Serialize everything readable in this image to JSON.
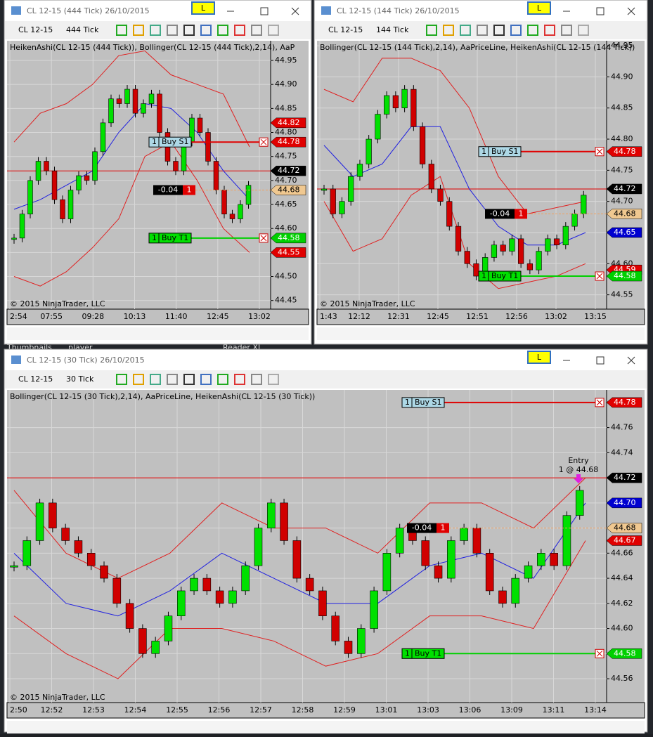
{
  "desktop": {
    "labels": [
      "Thumbnails",
      "player",
      "Reader XI"
    ]
  },
  "windows": [
    {
      "title": "CL 12-15 (444 Tick)  26/10/2015",
      "badge": "L",
      "instrument": "CL 12-15",
      "interval": "444 Tick",
      "indicators": "HeikenAshi(CL 12-15 (444 Tick)), Bollinger(CL 12-15 (444 Tick),2,14), AaP",
      "copyright": "© 2015 NinjaTrader, LLC",
      "ylim": [
        44.432,
        44.991
      ],
      "yticks": [
        44.45,
        {
          "value": 44.5,
          "label": "44.50"
        },
        44.55,
        {
          "value": 44.6,
          "label": "44.60"
        },
        44.65,
        {
          "value": 44.7,
          "label": "44.70"
        },
        44.75,
        {
          "value": 44.8,
          "label": "44.80"
        },
        44.85,
        {
          "value": 44.9,
          "label": "44.90"
        },
        44.95
      ],
      "times": [
        "2:54",
        "07:55",
        "09:28",
        "10:13",
        "11:40",
        "12:45",
        "13:02"
      ],
      "closes": [
        44.58,
        44.63,
        44.7,
        44.74,
        44.72,
        44.66,
        44.62,
        44.68,
        44.71,
        44.7,
        44.76,
        44.82,
        44.87,
        44.86,
        44.89,
        44.84,
        44.86,
        44.88,
        44.8,
        44.74,
        44.72,
        44.78,
        44.83,
        44.8,
        44.74,
        44.68,
        44.63,
        44.62,
        44.65,
        44.69
      ],
      "bb_upper": [
        44.78,
        44.84,
        44.86,
        44.9,
        44.96,
        44.97,
        44.92,
        44.9,
        44.88,
        44.77
      ],
      "bb_mid": [
        44.64,
        44.66,
        44.69,
        44.72,
        44.8,
        44.86,
        44.85,
        44.8,
        44.72,
        44.66
      ],
      "bb_lower": [
        44.5,
        44.48,
        44.51,
        44.56,
        44.62,
        44.75,
        44.78,
        44.7,
        44.6,
        44.55
      ],
      "price_line": 44.72,
      "markers": [
        {
          "price": 44.82,
          "color": "#e00000"
        },
        {
          "price": 44.78,
          "color": "#e00000"
        },
        {
          "price": 44.72,
          "color": "#000000"
        },
        {
          "price": 44.68,
          "color": "#f0c890"
        },
        {
          "price": 44.58,
          "color": "#00d000"
        },
        {
          "price": 44.55,
          "color": "#e00000"
        }
      ],
      "orders": [
        {
          "qty": 1,
          "name": "Buy S1",
          "price": 44.78,
          "color": "#add8e6",
          "line": "#e00000"
        },
        {
          "qty": 1,
          "name": "Buy T1",
          "price": 44.58,
          "color": "#00e000",
          "line": "#00d000"
        }
      ],
      "position": {
        "pnl": -0.04,
        "qty": 1,
        "price": 44.68
      }
    },
    {
      "title": "CL 12-15 (144 Tick)  26/10/2015",
      "badge": "L",
      "instrument": "CL 12-15",
      "interval": "144 Tick",
      "indicators": "Bollinger(CL 12-15 (144 Tick),2,14), AaPriceLine, HeikenAshi(CL 12-15 (144 Tick))",
      "copyright": "© 2015 NinjaTrader, LLC",
      "ylim": [
        44.527,
        44.958
      ],
      "yticks": [
        44.55,
        {
          "value": 44.6,
          "label": "44.60"
        },
        44.65,
        {
          "value": 44.7,
          "label": "44.70"
        },
        44.75,
        {
          "value": 44.8,
          "label": "44.80"
        },
        44.85,
        {
          "value": 44.9,
          "label": "44.90"
        },
        44.95
      ],
      "times": [
        "1:43",
        "12:12",
        "12:31",
        "12:45",
        "12:51",
        "12:56",
        "13:02",
        "13:15"
      ],
      "closes": [
        44.72,
        44.68,
        44.7,
        44.74,
        44.76,
        44.8,
        44.84,
        44.87,
        44.85,
        44.88,
        44.82,
        44.76,
        44.72,
        44.7,
        44.66,
        44.62,
        44.6,
        44.58,
        44.61,
        44.63,
        44.62,
        44.64,
        44.6,
        44.59,
        44.62,
        44.64,
        44.63,
        44.66,
        44.68,
        44.71
      ],
      "bb_upper": [
        44.88,
        44.86,
        44.93,
        44.93,
        44.91,
        44.85,
        44.74,
        44.68,
        44.69,
        44.7
      ],
      "bb_mid": [
        44.79,
        44.74,
        44.76,
        44.82,
        44.82,
        44.72,
        44.66,
        44.63,
        44.63,
        44.65
      ],
      "bb_lower": [
        44.7,
        44.62,
        44.64,
        44.71,
        44.74,
        44.6,
        44.56,
        44.57,
        44.58,
        44.6
      ],
      "price_line": 44.72,
      "markers": [
        {
          "price": 44.78,
          "color": "#e00000"
        },
        {
          "price": 44.72,
          "color": "#000000"
        },
        {
          "price": 44.68,
          "color": "#f0c890"
        },
        {
          "price": 44.65,
          "color": "#0000d0"
        },
        {
          "price": 44.59,
          "color": "#e00000"
        },
        {
          "price": 44.58,
          "color": "#00d000"
        }
      ],
      "orders": [
        {
          "qty": 1,
          "name": "Buy S1",
          "price": 44.78,
          "color": "#add8e6",
          "line": "#e00000"
        },
        {
          "qty": 1,
          "name": "Buy T1",
          "price": 44.58,
          "color": "#00e000",
          "line": "#00d000"
        }
      ],
      "position": {
        "pnl": -0.04,
        "qty": 1,
        "price": 44.68
      }
    },
    {
      "title": "CL 12-15 (30 Tick)  26/10/2015",
      "badge": "L",
      "instrument": "CL 12-15",
      "interval": "30 Tick",
      "indicators": "Bollinger(CL 12-15 (30 Tick),2,14), AaPriceLine, HeikenAshi(CL 12-15 (30 Tick))",
      "copyright": "© 2015 NinjaTrader, LLC",
      "ylim": [
        44.541,
        44.79
      ],
      "yticks": [
        44.56,
        44.58,
        {
          "value": 44.6,
          "label": "44.60"
        },
        44.62,
        44.64,
        44.66,
        44.68,
        {
          "value": 44.7,
          "label": "44.70"
        },
        44.72,
        44.74,
        44.76
      ],
      "times": [
        "2:50",
        "12:52",
        "12:53",
        "12:54",
        "12:55",
        "12:56",
        "12:57",
        "12:58",
        "12:59",
        "13:01",
        "13:03",
        "13:06",
        "13:09",
        "13:11",
        "13:14"
      ],
      "closes": [
        44.65,
        44.67,
        44.7,
        44.68,
        44.67,
        44.66,
        44.65,
        44.64,
        44.62,
        44.6,
        44.58,
        44.59,
        44.61,
        44.63,
        44.64,
        44.63,
        44.62,
        44.63,
        44.65,
        44.68,
        44.7,
        44.67,
        44.64,
        44.63,
        44.61,
        44.59,
        44.58,
        44.6,
        44.63,
        44.66,
        44.68,
        44.67,
        44.65,
        44.64,
        44.67,
        44.68,
        44.66,
        44.63,
        44.62,
        44.64,
        44.65,
        44.66,
        44.65,
        44.69,
        44.71
      ],
      "bb_upper": [
        44.71,
        44.66,
        44.64,
        44.66,
        44.7,
        44.68,
        44.68,
        44.66,
        44.7,
        44.7,
        44.68,
        44.72
      ],
      "bb_mid": [
        44.66,
        44.62,
        44.61,
        44.63,
        44.66,
        44.64,
        44.62,
        44.62,
        44.65,
        44.66,
        44.64,
        44.7
      ],
      "bb_lower": [
        44.61,
        44.58,
        44.56,
        44.6,
        44.6,
        44.59,
        44.57,
        44.58,
        44.61,
        44.61,
        44.6,
        44.67
      ],
      "price_line": 44.72,
      "markers": [
        {
          "price": 44.78,
          "color": "#e00000"
        },
        {
          "price": 44.72,
          "color": "#000000"
        },
        {
          "price": 44.7,
          "label": "44.70",
          "color": "#0000d0"
        },
        {
          "price": 44.68,
          "color": "#f0c890"
        },
        {
          "price": 44.67,
          "color": "#e00000"
        },
        {
          "price": 44.58,
          "color": "#00d000"
        }
      ],
      "orders": [
        {
          "qty": 1,
          "name": "Buy S1",
          "price": 44.78,
          "color": "#add8e6",
          "line": "#e00000"
        },
        {
          "qty": 1,
          "name": "Buy T1",
          "price": 44.58,
          "color": "#00e000",
          "line": "#00d000"
        }
      ],
      "position": {
        "pnl": -0.04,
        "qty": 1,
        "price": 44.68
      },
      "entry": {
        "label": "Entry",
        "detail": "1 @ 44.68"
      }
    }
  ]
}
